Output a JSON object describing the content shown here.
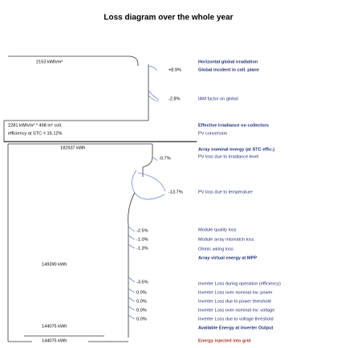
{
  "title": "Loss diagram over the whole year",
  "left_labels": [
    "2153 kWh/m²",
    "2281 kWh/m² * 498 m² coll.",
    "efficiency at STC = 16.12%",
    "182937 kWh",
    "149390 kWh",
    "144075 kWh",
    "144075 kWh"
  ],
  "losses": [
    "+8.9%",
    "-2.8%",
    "-0.7%",
    "-13.7%",
    "-2.5%",
    "-1.0%",
    "-1.3%",
    "-3.5%",
    "0.0%",
    "0.0%",
    "0.0%",
    "0.0%"
  ],
  "descriptions": [
    "Horizontal global irradiation",
    "Global incident in coll. plane",
    "IAM factor on global",
    "Effective irradiance on collectors",
    "PV conversion",
    "Array nominal energy (at STC effic.)",
    "PV loss due to irradiance level",
    "PV loss due to temperature",
    "Module quality loss",
    "Module array mismatch loss",
    "Ohmic wiring loss",
    "Array virtual energy at MPP",
    "Inverter Loss during operation (efficiency)",
    "Inverter Loss over nominal inv. power",
    "Inverter Loss due to power threshold",
    "Inverter Loss over nominal inv. voltage",
    "Inverter Loss due to voltage threshold",
    "Available Energy at Inverter Output",
    "Energy injected into grid"
  ]
}
